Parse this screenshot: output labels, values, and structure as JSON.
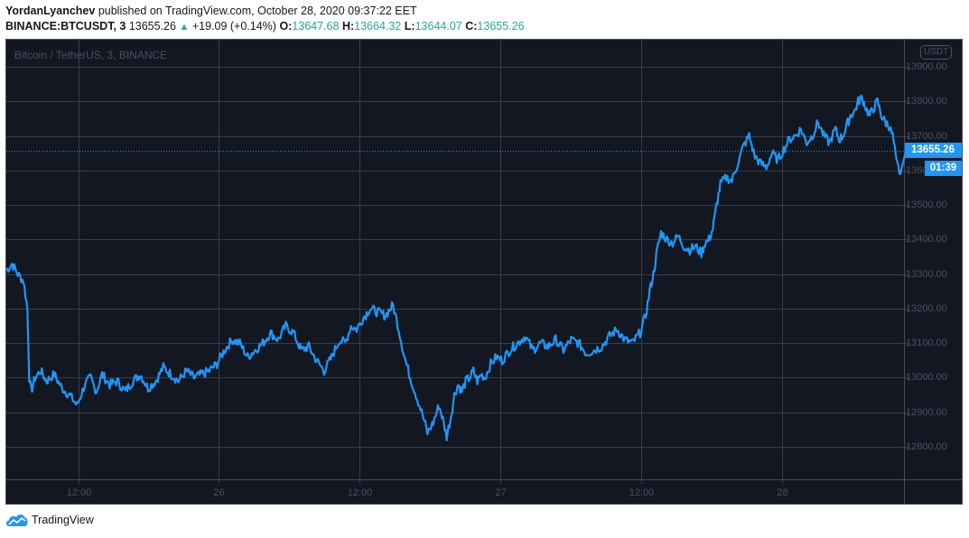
{
  "header": {
    "author": "YordanLyanchev",
    "published_text": "published on TradingView.com, October 28, 2020 09:37:22 EET",
    "symbol": "BINANCE:BTCUSDT, 3",
    "last": "13655.26",
    "change": "+19.09 (+0.14%)",
    "o_label": "O:",
    "o_value": "13647.68",
    "h_label": "H:",
    "h_value": "13664.32",
    "l_label": "L:",
    "l_value": "13644.07",
    "c_label": "C:",
    "c_value": "13655.26",
    "up_arrow": "▲"
  },
  "chart": {
    "watermark": "Bitcoin / TetherUS, 3, BINANCE",
    "currency_badge": "USDT",
    "last_price_label": "13655.26",
    "countdown_label": "01:39",
    "colors": {
      "background": "#131722",
      "grid": "#3b3e48",
      "line": "#2196f3",
      "last_price": "#2196f3",
      "axis_text": "#4c5263",
      "up": "#26a69a"
    }
  },
  "footer": {
    "brand": "TradingView"
  },
  "chart_data": {
    "type": "line",
    "title": "Bitcoin / TetherUS, 3, BINANCE",
    "symbol": "BINANCE:BTCUSDT",
    "interval": "3",
    "xlabel": "",
    "ylabel": "USDT",
    "ylim": [
      12700,
      13950
    ],
    "grid": true,
    "legend": "none",
    "y_ticks": [
      "13900.00",
      "13800.00",
      "13700.00",
      "13600.00",
      "13500.00",
      "13400.00",
      "13300.00",
      "13200.00",
      "13100.00",
      "13000.00",
      "12900.00",
      "12800.00"
    ],
    "x_ticks": [
      "12:00",
      "26",
      "12:00",
      "27",
      "12:00",
      "28"
    ],
    "x_tick_positions": [
      0.075,
      0.222,
      0.369,
      0.516,
      0.663,
      0.81
    ],
    "last_value": 13655.26,
    "series": [
      {
        "name": "BTCUSDT close",
        "x": [
          0.0,
          0.006,
          0.012,
          0.018,
          0.022,
          0.024,
          0.026,
          0.03,
          0.036,
          0.042,
          0.05,
          0.058,
          0.066,
          0.074,
          0.082,
          0.088,
          0.094,
          0.1,
          0.108,
          0.116,
          0.124,
          0.132,
          0.14,
          0.148,
          0.156,
          0.164,
          0.172,
          0.18,
          0.188,
          0.196,
          0.204,
          0.212,
          0.22,
          0.228,
          0.236,
          0.244,
          0.252,
          0.26,
          0.268,
          0.276,
          0.284,
          0.292,
          0.3,
          0.308,
          0.316,
          0.324,
          0.332,
          0.34,
          0.348,
          0.354,
          0.36,
          0.366,
          0.372,
          0.38,
          0.388,
          0.396,
          0.404,
          0.41,
          0.416,
          0.422,
          0.428,
          0.434,
          0.44,
          0.446,
          0.452,
          0.456,
          0.46,
          0.464,
          0.468,
          0.472,
          0.476,
          0.48,
          0.484,
          0.488,
          0.492,
          0.496,
          0.5,
          0.506,
          0.512,
          0.518,
          0.526,
          0.534,
          0.542,
          0.55,
          0.558,
          0.566,
          0.574,
          0.582,
          0.59,
          0.598,
          0.606,
          0.614,
          0.622,
          0.63,
          0.638,
          0.646,
          0.654,
          0.662,
          0.668,
          0.672,
          0.676,
          0.68,
          0.684,
          0.69,
          0.696,
          0.702,
          0.708,
          0.714,
          0.72,
          0.726,
          0.73,
          0.734,
          0.738,
          0.742,
          0.746,
          0.752,
          0.758,
          0.764,
          0.77,
          0.776,
          0.782,
          0.788,
          0.794,
          0.8,
          0.806,
          0.812,
          0.818,
          0.824,
          0.83,
          0.836,
          0.842,
          0.848,
          0.854,
          0.86,
          0.866,
          0.87,
          0.874,
          0.878,
          0.882,
          0.886,
          0.89,
          0.894,
          0.898,
          0.902,
          0.906,
          0.91,
          0.914,
          0.918,
          0.922,
          0.926,
          0.93,
          0.934
        ],
        "values": [
          13310,
          13330,
          13300,
          13280,
          13200,
          13000,
          12960,
          13000,
          13020,
          12990,
          13010,
          12970,
          12950,
          12920,
          12980,
          13000,
          12960,
          13010,
          12980,
          12990,
          12960,
          12990,
          13010,
          12970,
          12990,
          13030,
          13010,
          12990,
          13020,
          13000,
          13010,
          13020,
          13040,
          13080,
          13110,
          13100,
          13060,
          13080,
          13100,
          13130,
          13110,
          13150,
          13130,
          13080,
          13090,
          13050,
          13020,
          13060,
          13110,
          13100,
          13150,
          13140,
          13170,
          13200,
          13190,
          13180,
          13210,
          13140,
          13060,
          13000,
          12950,
          12900,
          12840,
          12870,
          12920,
          12880,
          12830,
          12880,
          12950,
          12980,
          12960,
          12990,
          13000,
          13020,
          12990,
          13010,
          13000,
          13040,
          13060,
          13050,
          13080,
          13100,
          13120,
          13080,
          13100,
          13090,
          13110,
          13080,
          13110,
          13100,
          13070,
          13080,
          13090,
          13120,
          13140,
          13110,
          13100,
          13130,
          13180,
          13250,
          13300,
          13370,
          13420,
          13400,
          13390,
          13410,
          13380,
          13370,
          13380,
          13360,
          13390,
          13400,
          13430,
          13500,
          13560,
          13580,
          13570,
          13620,
          13670,
          13700,
          13640,
          13620,
          13610,
          13650,
          13630,
          13660,
          13690,
          13700,
          13720,
          13680,
          13700,
          13740,
          13700,
          13680,
          13720,
          13690,
          13700,
          13730,
          13760,
          13770,
          13800,
          13810,
          13780,
          13760,
          13780,
          13800,
          13760,
          13740,
          13730,
          13700,
          13620,
          13590
        ]
      }
    ]
  }
}
